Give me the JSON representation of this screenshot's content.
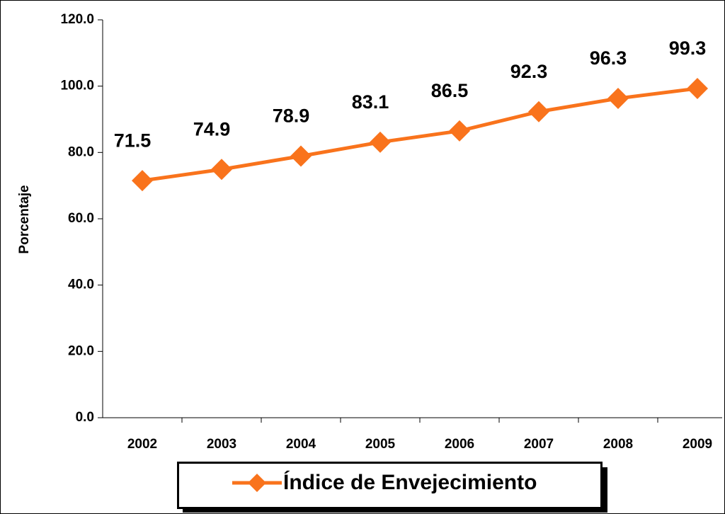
{
  "chart_data": {
    "type": "line",
    "categories": [
      "2002",
      "2003",
      "2004",
      "2005",
      "2006",
      "2007",
      "2008",
      "2009"
    ],
    "series": [
      {
        "name": "Índice de Envejecimiento",
        "color": "#f9731c",
        "values": [
          71.5,
          74.9,
          78.9,
          83.1,
          86.5,
          92.3,
          96.3,
          99.3
        ]
      }
    ],
    "y_label": "Porcentaje",
    "ylim": [
      0,
      120
    ],
    "yticks": [
      {
        "value": 0,
        "label": "0.0"
      },
      {
        "value": 20,
        "label": "20.0"
      },
      {
        "value": 40,
        "label": "40.0"
      },
      {
        "value": 60,
        "label": "60.0"
      },
      {
        "value": 80,
        "label": "80.0"
      },
      {
        "value": 100,
        "label": "100.0"
      },
      {
        "value": 120,
        "label": "120.0"
      }
    ],
    "legend": "bottom"
  }
}
